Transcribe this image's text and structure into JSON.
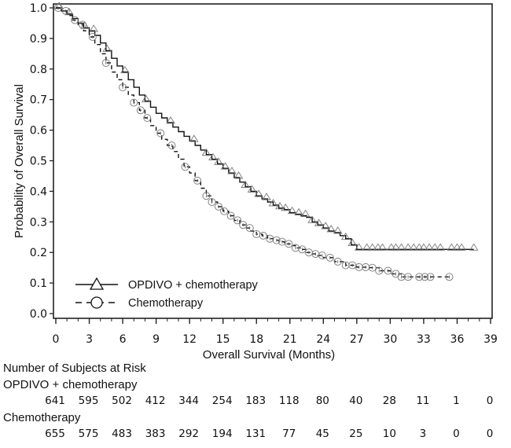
{
  "chart_data": {
    "type": "line",
    "subtype": "kaplan-meier",
    "title": "",
    "xlabel": "Overall Survival (Months)",
    "ylabel": "Probability of Overall Survival",
    "xlim": [
      0,
      39
    ],
    "ylim": [
      0.0,
      1.0
    ],
    "x_ticks": [
      0,
      3,
      6,
      9,
      12,
      15,
      18,
      21,
      24,
      27,
      30,
      33,
      36,
      39
    ],
    "x_tick_labels": [
      "0",
      "3",
      "6",
      "9",
      "12",
      "15",
      "18",
      "21",
      "24",
      "27",
      "30",
      "33",
      "36",
      "39"
    ],
    "y_ticks": [
      0.0,
      0.1,
      0.2,
      0.3,
      0.4,
      0.5,
      0.6,
      0.7,
      0.8,
      0.9,
      1.0
    ],
    "y_tick_labels": [
      "0.0",
      "0.1",
      "0.2",
      "0.3",
      "0.4",
      "0.5",
      "0.6",
      "0.7",
      "0.8",
      "0.9",
      "1.0"
    ],
    "grid": false,
    "legend": {
      "placement": "bottom-left"
    },
    "series": [
      {
        "name": "OPDIVO + chemotherapy",
        "line_style": "solid",
        "marker": "triangle",
        "color": "#111111",
        "x": [
          0,
          0.5,
          1,
          1.5,
          2,
          2.5,
          3,
          3.5,
          4,
          4.5,
          5,
          5.5,
          6,
          6.5,
          7,
          7.5,
          8,
          8.5,
          9,
          9.5,
          10,
          10.5,
          11,
          11.5,
          12,
          12.5,
          13,
          13.5,
          14,
          14.5,
          15,
          15.5,
          16,
          16.5,
          17,
          17.5,
          18,
          18.5,
          19,
          19.5,
          20,
          20.5,
          21,
          21.5,
          22,
          22.5,
          23,
          23.5,
          24,
          24.5,
          25,
          25.5,
          26,
          26.5,
          27,
          27.5,
          28,
          29,
          30,
          31,
          32,
          33,
          34,
          35,
          36,
          37,
          37.5
        ],
        "y": [
          1.0,
          0.99,
          0.98,
          0.965,
          0.95,
          0.935,
          0.925,
          0.91,
          0.885,
          0.86,
          0.835,
          0.81,
          0.79,
          0.765,
          0.74,
          0.715,
          0.695,
          0.675,
          0.655,
          0.64,
          0.625,
          0.61,
          0.595,
          0.58,
          0.565,
          0.55,
          0.535,
          0.52,
          0.505,
          0.49,
          0.475,
          0.46,
          0.445,
          0.43,
          0.415,
          0.4,
          0.385,
          0.375,
          0.365,
          0.355,
          0.345,
          0.34,
          0.33,
          0.325,
          0.32,
          0.315,
          0.3,
          0.29,
          0.28,
          0.27,
          0.265,
          0.255,
          0.245,
          0.225,
          0.21,
          0.21,
          0.21,
          0.21,
          0.21,
          0.21,
          0.21,
          0.21,
          0.21,
          0.21,
          0.21,
          0.21,
          0.21
        ],
        "censor_x": [
          0.3,
          1.2,
          2.6,
          3.4,
          4.6,
          6.2,
          8.1,
          10.3,
          12.4,
          13.5,
          14.1,
          14.6,
          15.2,
          15.8,
          16.4,
          17.0,
          17.6,
          18.2,
          18.9,
          19.5,
          20.1,
          20.6,
          21.2,
          21.8,
          22.4,
          23.0,
          23.6,
          24.2,
          24.7,
          25.3,
          26.0,
          26.6,
          27.2,
          27.9,
          28.4,
          28.9,
          29.3,
          30.1,
          30.5,
          31.0,
          31.6,
          32.1,
          32.6,
          33.0,
          33.5,
          34.0,
          34.5,
          35.5,
          36.0,
          36.4,
          37.5
        ]
      },
      {
        "name": "Chemotherapy",
        "line_style": "dashed",
        "marker": "circle",
        "color": "#111111",
        "x": [
          0,
          0.5,
          1,
          1.5,
          2,
          2.5,
          3,
          3.5,
          4,
          4.5,
          5,
          5.5,
          6,
          6.5,
          7,
          7.5,
          8,
          8.5,
          9,
          9.5,
          10,
          10.5,
          11,
          11.5,
          12,
          12.5,
          13,
          13.5,
          14,
          14.5,
          15,
          15.5,
          16,
          16.5,
          17,
          17.5,
          18,
          18.5,
          19,
          19.5,
          20,
          20.5,
          21,
          21.5,
          22,
          22.5,
          23,
          23.5,
          24,
          25,
          26,
          27,
          28,
          29,
          30,
          31,
          32,
          33,
          34,
          35.3
        ],
        "y": [
          1.0,
          0.99,
          0.975,
          0.96,
          0.945,
          0.925,
          0.905,
          0.88,
          0.85,
          0.82,
          0.79,
          0.765,
          0.74,
          0.715,
          0.69,
          0.665,
          0.64,
          0.615,
          0.59,
          0.57,
          0.55,
          0.53,
          0.505,
          0.48,
          0.46,
          0.435,
          0.41,
          0.385,
          0.365,
          0.35,
          0.335,
          0.32,
          0.305,
          0.29,
          0.28,
          0.27,
          0.26,
          0.255,
          0.245,
          0.24,
          0.235,
          0.228,
          0.222,
          0.215,
          0.21,
          0.2,
          0.195,
          0.19,
          0.183,
          0.17,
          0.158,
          0.152,
          0.15,
          0.14,
          0.13,
          0.12,
          0.12,
          0.12,
          0.12,
          0.12
        ],
        "censor_x": [
          0.2,
          0.9,
          1.7,
          2.4,
          3.3,
          4.5,
          6.0,
          7.0,
          7.6,
          8.2,
          9.4,
          10.4,
          11.6,
          12.7,
          13.5,
          14.0,
          14.6,
          15.1,
          15.7,
          16.3,
          16.8,
          17.4,
          18.0,
          18.6,
          19.2,
          19.8,
          20.3,
          20.9,
          21.5,
          22.1,
          22.7,
          23.3,
          23.9,
          24.6,
          25.3,
          26.0,
          26.6,
          27.2,
          27.8,
          28.4,
          29.0,
          29.8,
          30.5,
          31.0,
          31.6,
          32.6,
          33.1,
          33.6,
          35.3
        ]
      }
    ],
    "at_risk": {
      "title": "Number of Subjects at Risk",
      "times": [
        0,
        3,
        6,
        9,
        12,
        15,
        18,
        21,
        24,
        27,
        30,
        33,
        36,
        39
      ],
      "groups": [
        {
          "name": "OPDIVO + chemotherapy",
          "counts": [
            "641",
            "595",
            "502",
            "412",
            "344",
            "254",
            "183",
            "118",
            "80",
            "40",
            "28",
            "11",
            "1",
            "0"
          ]
        },
        {
          "name": "Chemotherapy",
          "counts": [
            "655",
            "575",
            "483",
            "383",
            "292",
            "194",
            "131",
            "77",
            "45",
            "25",
            "10",
            "3",
            "0",
            "0"
          ]
        }
      ]
    }
  }
}
